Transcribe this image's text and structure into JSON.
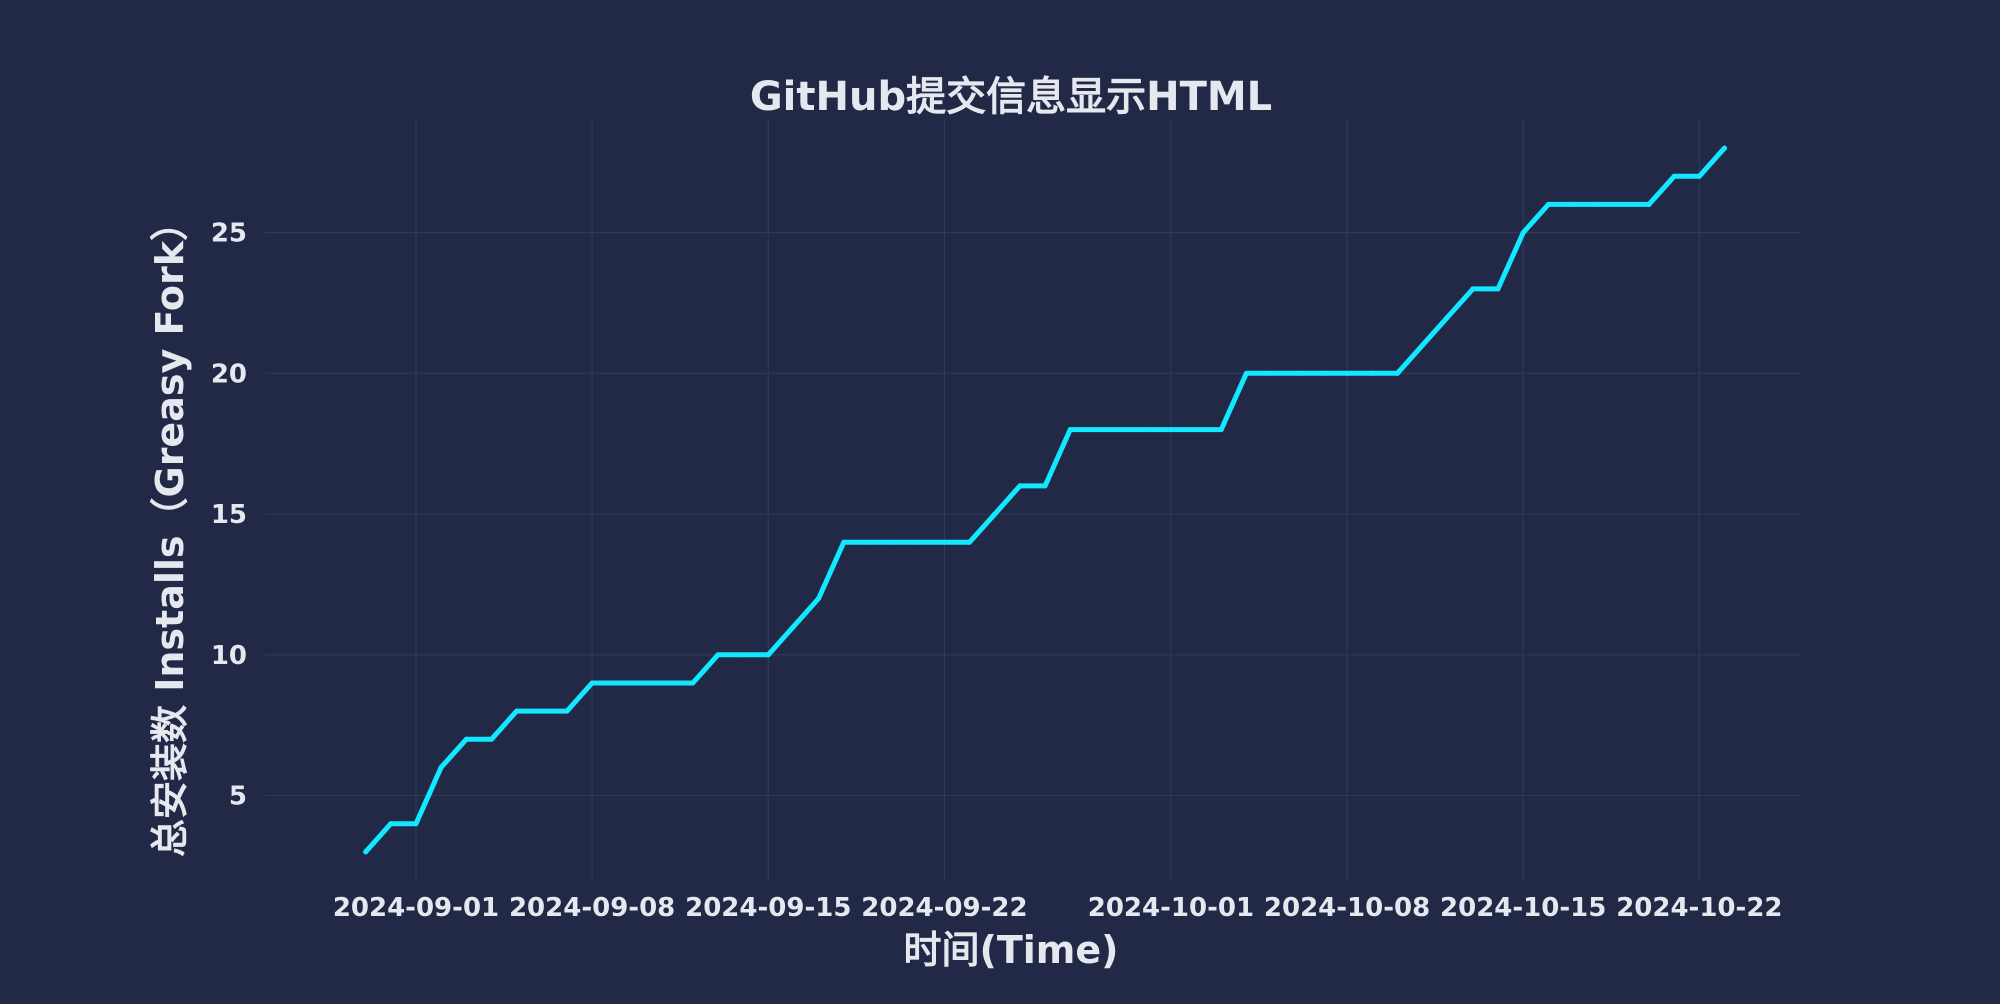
{
  "chart_data": {
    "type": "line",
    "title": "GitHub提交信息显示HTML",
    "xlabel": "时间(Time)",
    "ylabel": "总安装数 Installs（Greasy Fork）",
    "x_type": "date",
    "xlim": [
      "2024-08-26",
      "2024-10-26"
    ],
    "ylim": [
      2,
      29
    ],
    "grid": true,
    "x_ticks": [
      "2024-09-01",
      "2024-09-08",
      "2024-09-15",
      "2024-09-22",
      "2024-10-01",
      "2024-10-08",
      "2024-10-15",
      "2024-10-22"
    ],
    "y_ticks": [
      5,
      10,
      15,
      20,
      25
    ],
    "series": [
      {
        "color": "#12e8ff",
        "x": [
          "2024-08-30",
          "2024-08-31",
          "2024-09-01",
          "2024-09-02",
          "2024-09-03",
          "2024-09-04",
          "2024-09-05",
          "2024-09-06",
          "2024-09-07",
          "2024-09-08",
          "2024-09-09",
          "2024-09-10",
          "2024-09-11",
          "2024-09-12",
          "2024-09-13",
          "2024-09-14",
          "2024-09-15",
          "2024-09-16",
          "2024-09-17",
          "2024-09-18",
          "2024-09-19",
          "2024-09-20",
          "2024-09-21",
          "2024-09-22",
          "2024-09-23",
          "2024-09-24",
          "2024-09-25",
          "2024-09-26",
          "2024-09-27",
          "2024-09-28",
          "2024-09-29",
          "2024-09-30",
          "2024-10-01",
          "2024-10-02",
          "2024-10-03",
          "2024-10-04",
          "2024-10-05",
          "2024-10-06",
          "2024-10-07",
          "2024-10-08",
          "2024-10-09",
          "2024-10-10",
          "2024-10-11",
          "2024-10-12",
          "2024-10-13",
          "2024-10-14",
          "2024-10-15",
          "2024-10-16",
          "2024-10-17",
          "2024-10-18",
          "2024-10-19",
          "2024-10-20",
          "2024-10-21",
          "2024-10-22",
          "2024-10-23"
        ],
        "y": [
          3,
          4,
          4,
          6,
          7,
          7,
          8,
          8,
          8,
          9,
          9,
          9,
          9,
          9,
          10,
          10,
          10,
          11,
          12,
          14,
          14,
          14,
          14,
          14,
          14,
          15,
          16,
          16,
          18,
          18,
          18,
          18,
          18,
          18,
          18,
          20,
          20,
          20,
          20,
          20,
          20,
          20,
          21,
          22,
          23,
          23,
          25,
          26,
          26,
          26,
          26,
          26,
          27,
          27,
          28
        ]
      }
    ]
  }
}
